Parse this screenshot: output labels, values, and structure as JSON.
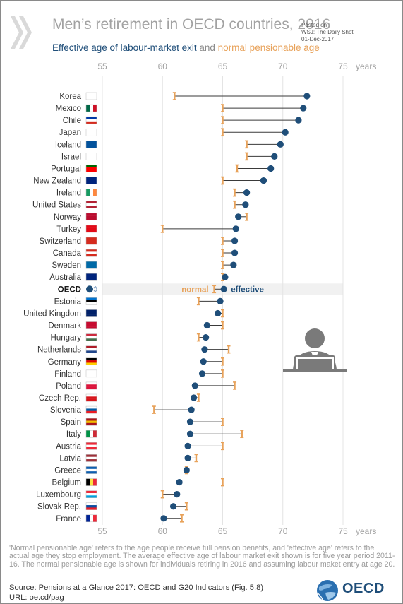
{
  "header": {
    "title": "Men’s retirement in OECD countries, 2016",
    "subtitle_effective": "Effective age of labour-market exit",
    "subtitle_and": "and",
    "subtitle_normal": "normal pensionable age",
    "credit_posted": "Posted on",
    "credit_source": "WSJ: The Daily Shot",
    "credit_date": "01-Dec-2017"
  },
  "colors": {
    "effective": "#1f4e79",
    "normal": "#e8a25a",
    "line": "#3a3a3a",
    "title": "#a2a2a2",
    "grid": "#e4e4e4"
  },
  "chart_data": {
    "type": "dumbbell",
    "title": "Men’s retirement in OECD countries, 2016",
    "x_unit": "years",
    "xlim": [
      55,
      75
    ],
    "x_ticks": [
      55,
      60,
      65,
      70,
      75
    ],
    "grid": "vertical",
    "annotations": {
      "normal": "normal",
      "effective": "effective"
    },
    "categories": [
      "Korea",
      "Mexico",
      "Chile",
      "Japan",
      "Iceland",
      "Israel",
      "Portugal",
      "New Zealand",
      "Ireland",
      "United States",
      "Norway",
      "Turkey",
      "Switzerland",
      "Canada",
      "Sweden",
      "Australia",
      "OECD",
      "Estonia",
      "United Kingdom",
      "Denmark",
      "Hungary",
      "Netherlands",
      "Germany",
      "Finland",
      "Poland",
      "Czech Rep.",
      "Slovenia",
      "Spain",
      "Italy",
      "Austria",
      "Latvia",
      "Greece",
      "Belgium",
      "Luxembourg",
      "Slovak Rep.",
      "France"
    ],
    "highlight": "OECD",
    "series": [
      {
        "name": "Effective age of labour-market exit",
        "values": [
          72.0,
          71.7,
          71.3,
          70.2,
          69.8,
          69.3,
          69.0,
          68.4,
          67.0,
          66.9,
          66.3,
          66.1,
          66.0,
          66.0,
          65.9,
          65.2,
          65.1,
          64.8,
          64.6,
          63.7,
          63.6,
          63.5,
          63.4,
          63.3,
          62.7,
          62.6,
          62.4,
          62.3,
          62.3,
          62.1,
          62.1,
          62.0,
          61.4,
          61.2,
          60.9,
          60.1
        ]
      },
      {
        "name": "normal pensionable age",
        "values": [
          61.0,
          65.0,
          65.0,
          65.0,
          67.0,
          67.0,
          66.2,
          65.0,
          66.0,
          66.0,
          67.0,
          60.0,
          65.0,
          65.0,
          65.0,
          65.0,
          64.3,
          63.0,
          65.0,
          65.0,
          63.0,
          65.5,
          65.0,
          65.0,
          66.0,
          63.0,
          59.3,
          65.0,
          66.6,
          65.0,
          62.8,
          62.0,
          65.0,
          60.0,
          62.0,
          61.6
        ]
      }
    ]
  },
  "flags": {
    "Korea": [
      "#ffffff",
      "#ffffff",
      "#ffffff"
    ],
    "Mexico": [
      "#006847",
      "#ffffff",
      "#ce1126"
    ],
    "Chile": [
      "#0039a6",
      "#ffffff",
      "#d52b1e"
    ],
    "Japan": [
      "#ffffff",
      "#ffffff",
      "#ffffff"
    ],
    "Iceland": [
      "#02529c",
      "#02529c",
      "#02529c"
    ],
    "Israel": [
      "#ffffff",
      "#ffffff",
      "#ffffff"
    ],
    "Portugal": [
      "#006600",
      "#ff0000",
      "#ff0000"
    ],
    "New Zealand": [
      "#00247d",
      "#00247d",
      "#00247d"
    ],
    "Ireland": [
      "#169b62",
      "#ffffff",
      "#ff883e"
    ],
    "United States": [
      "#b22234",
      "#ffffff",
      "#b22234"
    ],
    "Norway": [
      "#ba0c2f",
      "#ba0c2f",
      "#ba0c2f"
    ],
    "Turkey": [
      "#e30a17",
      "#e30a17",
      "#e30a17"
    ],
    "Switzerland": [
      "#d52b1e",
      "#d52b1e",
      "#d52b1e"
    ],
    "Canada": [
      "#d52b1e",
      "#ffffff",
      "#d52b1e"
    ],
    "Sweden": [
      "#006aa7",
      "#006aa7",
      "#006aa7"
    ],
    "Australia": [
      "#00247d",
      "#00247d",
      "#00247d"
    ],
    "OECD": [
      "#1f4e79",
      "#1f4e79",
      "#1f4e79"
    ],
    "Estonia": [
      "#0072ce",
      "#000000",
      "#ffffff"
    ],
    "United Kingdom": [
      "#012169",
      "#012169",
      "#012169"
    ],
    "Denmark": [
      "#c60c30",
      "#c60c30",
      "#c60c30"
    ],
    "Hungary": [
      "#cd2a3e",
      "#ffffff",
      "#436f4d"
    ],
    "Netherlands": [
      "#ae1c28",
      "#ffffff",
      "#21468b"
    ],
    "Germany": [
      "#000000",
      "#dd0000",
      "#ffce00"
    ],
    "Finland": [
      "#ffffff",
      "#ffffff",
      "#ffffff"
    ],
    "Poland": [
      "#ffffff",
      "#dc143c",
      "#dc143c"
    ],
    "Czech Rep.": [
      "#ffffff",
      "#d7141a",
      "#d7141a"
    ],
    "Slovenia": [
      "#ffffff",
      "#005da4",
      "#ed1c24"
    ],
    "Spain": [
      "#aa151b",
      "#f1bf00",
      "#aa151b"
    ],
    "Italy": [
      "#009246",
      "#ffffff",
      "#ce2b37"
    ],
    "Austria": [
      "#ed2939",
      "#ffffff",
      "#ed2939"
    ],
    "Latvia": [
      "#9e3039",
      "#ffffff",
      "#9e3039"
    ],
    "Greece": [
      "#0d5eaf",
      "#ffffff",
      "#0d5eaf"
    ],
    "Belgium": [
      "#000000",
      "#fae042",
      "#ed2939"
    ],
    "Luxembourg": [
      "#ed2939",
      "#ffffff",
      "#00a1de"
    ],
    "Slovak Rep.": [
      "#ffffff",
      "#0b4ea2",
      "#ee1c25"
    ],
    "France": [
      "#002395",
      "#ffffff",
      "#ed2939"
    ]
  },
  "icons": {
    "chevrons": "double-chevron-icon",
    "person": "person-at-laptop-icon",
    "logo": "oecd-globe-icon"
  },
  "footer": {
    "note": "'Normal pensionable age' refers to the age people receive full pension benefits, and 'effective age' refers to the actual age they stop employment. The average effective age of labour market exit shown is for five year period 2011-16. The normal pensionable age is shown for individuals retiring in 2016 and assuming labour maket entry at age 20.",
    "source": "Source: Pensions at a Glance 2017: OECD and G20 Indicators (Fig. 5.8)",
    "url": "URL: oe.cd/pag",
    "logo_text": "OECD"
  }
}
